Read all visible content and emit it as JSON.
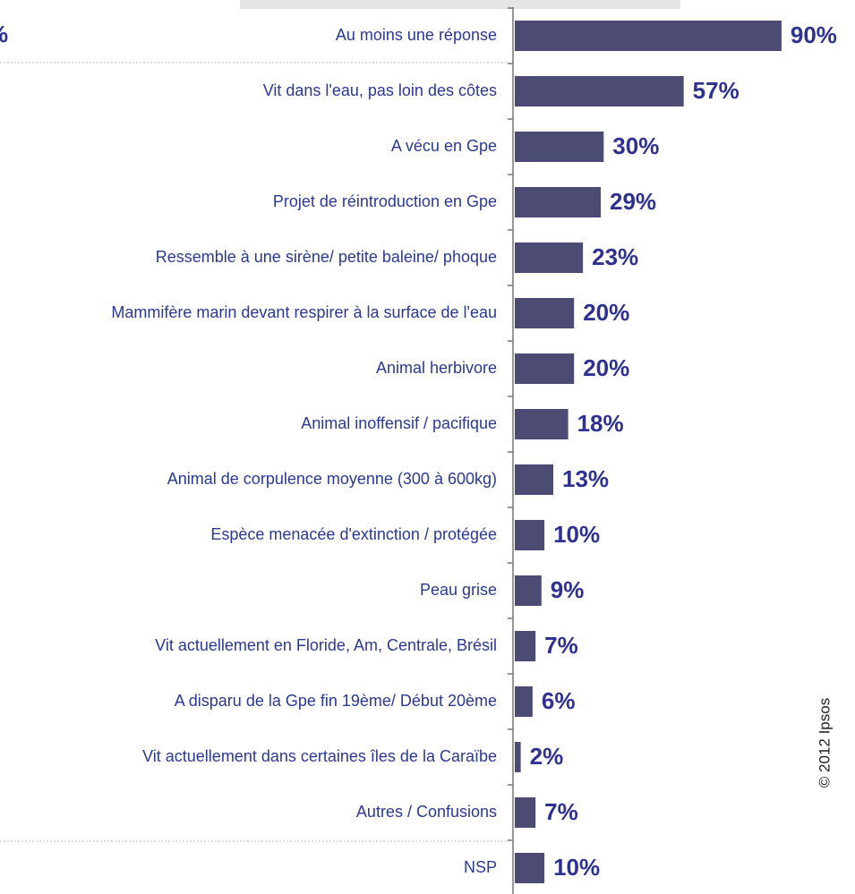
{
  "chart_data": {
    "type": "barh",
    "categories": [
      "Au moins une réponse",
      "Vit dans l'eau, pas loin des côtes",
      "A vécu en Gpe",
      "Projet de réintroduction en Gpe",
      "Ressemble à une sirène/ petite baleine/ phoque",
      "Mammifère marin devant respirer à la surface de l'eau",
      "Animal herbivore",
      "Animal inoffensif / pacifique",
      "Animal de corpulence moyenne (300 à 600kg)",
      "Espèce menacée d'extinction / protégée",
      "Peau grise",
      "Vit actuellement en Floride, Am, Centrale, Brésil",
      "A disparu de la Gpe fin 19ème/ Début 20ème",
      "Vit actuellement dans certaines îles de la Caraïbe",
      "Autres / Confusions",
      "NSP"
    ],
    "values": [
      90,
      57,
      30,
      29,
      23,
      20,
      20,
      18,
      13,
      10,
      9,
      7,
      6,
      2,
      7,
      10
    ],
    "value_labels": [
      "90%",
      "57%",
      "30%",
      "29%",
      "23%",
      "20%",
      "20%",
      "18%",
      "13%",
      "10%",
      "9%",
      "7%",
      "6%",
      "2%",
      "7%",
      "10%"
    ],
    "color": "#4b4b73",
    "left_fragment": "%",
    "copyright": "© 2012 Ipsos"
  }
}
